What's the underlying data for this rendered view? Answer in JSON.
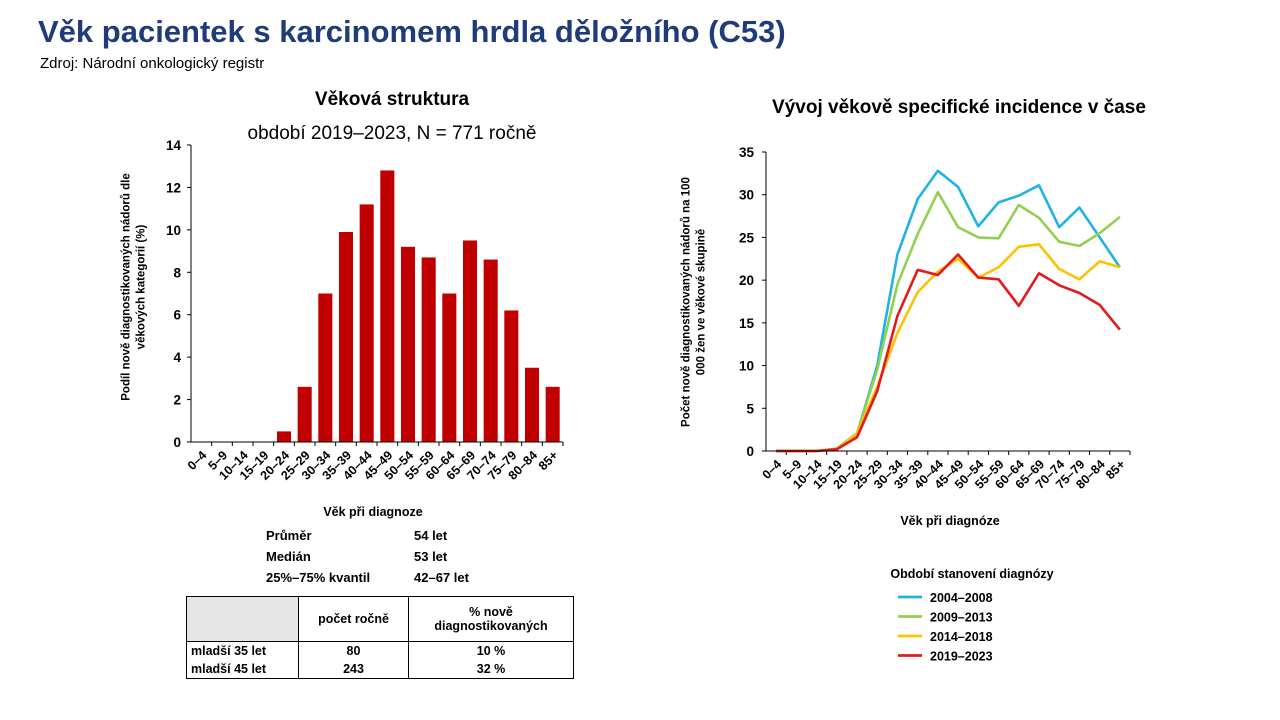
{
  "page": {
    "title": "Věk pacientek s karcinomem hrdla děložního (C53)",
    "source": "Zdroj: Národní onkologický registr"
  },
  "stats": {
    "mean_label": "Průměr",
    "mean_value": "54 let",
    "median_label": "Medián",
    "median_value": "53 let",
    "iqr_label": "25%–75% kvantil",
    "iqr_value": "42–67 let"
  },
  "table": {
    "col1": "počet ročně",
    "col2": "% nově diagnostikovaných",
    "rows": [
      {
        "label": "mladší 35 let",
        "count": "80",
        "pct": "10 %"
      },
      {
        "label": "mladší 45 let",
        "count": "243",
        "pct": "32 %"
      }
    ]
  },
  "colors": {
    "title": "#1f3b7a",
    "bars": "#c00000",
    "s2004": "#1fb3e6",
    "s2009": "#92d050",
    "s2014": "#ffc000",
    "s2019": "#e31a1c"
  },
  "chart_data": [
    {
      "type": "bar",
      "title": "Věková struktura",
      "subtitle": "období 2019–2023, N = 771 ročně",
      "xlabel": "Věk při diagnoze",
      "ylabel": "Podíl nově diagnostikovaných nádorů dle věkových kategorií (%)",
      "ylim": [
        0,
        14
      ],
      "yticks": [
        0,
        2,
        4,
        6,
        8,
        10,
        12,
        14
      ],
      "categories": [
        "0–4",
        "5–9",
        "10–14",
        "15–19",
        "20–24",
        "25–29",
        "30–34",
        "35–39",
        "40–44",
        "45–49",
        "50–54",
        "55–59",
        "60–64",
        "65–69",
        "70–74",
        "75–79",
        "80–84",
        "85+"
      ],
      "values": [
        0,
        0,
        0,
        0,
        0.5,
        2.6,
        7.0,
        9.9,
        11.2,
        12.8,
        9.2,
        8.7,
        7.0,
        9.5,
        8.6,
        6.2,
        3.5,
        2.6
      ]
    },
    {
      "type": "line",
      "title": "Vývoj věkově specifické incidence v čase",
      "xlabel": "Věk při diagnóze",
      "ylabel": "Počet nově diagnostikovaných nádorů na 100 000 žen ve věkové skupině",
      "ylim": [
        0,
        35
      ],
      "yticks": [
        0,
        5,
        10,
        15,
        20,
        25,
        30,
        35
      ],
      "categories": [
        "0–4",
        "5–9",
        "10–14",
        "15–19",
        "20–24",
        "25–29",
        "30–34",
        "35–39",
        "40–44",
        "45–49",
        "50–54",
        "55–59",
        "60–64",
        "65–69",
        "70–74",
        "75–79",
        "80–84",
        "85+"
      ],
      "legend_title": "Období stanovení diagnózy",
      "series": [
        {
          "name": "2004–2008",
          "values": [
            0,
            0,
            0,
            0.2,
            2.0,
            10.0,
            23.0,
            29.5,
            32.8,
            30.9,
            26.3,
            29.1,
            29.9,
            31.1,
            26.2,
            28.5,
            25.0,
            21.5
          ]
        },
        {
          "name": "2009–2013",
          "values": [
            0,
            0,
            0,
            0.3,
            2.1,
            9.5,
            19.5,
            25.4,
            30.3,
            26.2,
            25.0,
            24.9,
            28.8,
            27.3,
            24.5,
            24.0,
            25.5,
            27.4
          ]
        },
        {
          "name": "2014–2018",
          "values": [
            0,
            0,
            0,
            0.2,
            2.0,
            7.5,
            13.8,
            18.6,
            21.0,
            22.5,
            20.3,
            21.5,
            23.9,
            24.2,
            21.3,
            20.1,
            22.2,
            21.5
          ]
        },
        {
          "name": "2019–2023",
          "values": [
            0,
            0,
            0,
            0.2,
            1.6,
            7.0,
            15.8,
            21.2,
            20.6,
            23.0,
            20.3,
            20.1,
            17.0,
            20.8,
            19.4,
            18.5,
            17.1,
            14.2
          ]
        }
      ]
    }
  ]
}
